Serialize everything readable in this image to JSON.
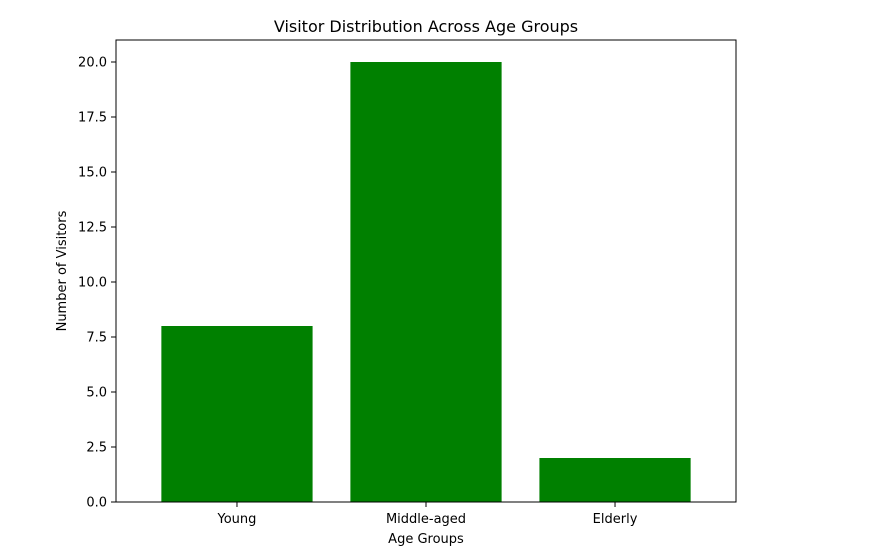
{
  "chart_data": {
    "type": "bar",
    "title": "Visitor Distribution Across Age Groups",
    "xlabel": "Age Groups",
    "ylabel": "Number of Visitors",
    "categories": [
      "Young",
      "Middle-aged",
      "Elderly"
    ],
    "values": [
      8,
      20,
      2
    ],
    "ylim": [
      0,
      21
    ],
    "yticks": [
      0,
      2.5,
      5,
      7.5,
      10,
      12.5,
      15,
      17.5,
      20
    ],
    "ytick_labels": [
      "0.0",
      "2.5",
      "5.0",
      "7.5",
      "10.0",
      "12.5",
      "15.0",
      "17.5",
      "20.0"
    ],
    "bar_color": "#008000",
    "grid": false,
    "legend": "none"
  }
}
